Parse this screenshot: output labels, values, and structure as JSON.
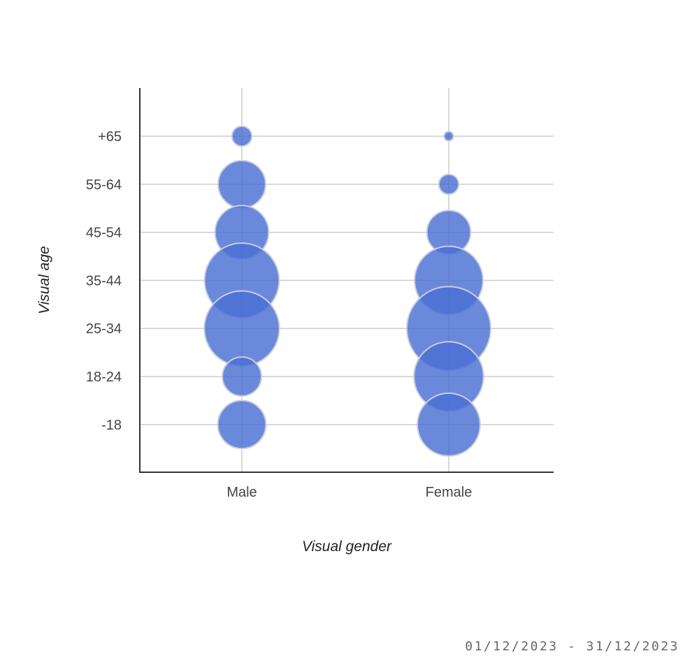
{
  "date_range": "01/12/2023 - 31/12/2023",
  "colors": {
    "bubble_fill": "#4a6fd3",
    "bubble_stroke": "#c9cede",
    "grid": "#cccccc",
    "axis": "#333333"
  },
  "chart_data": {
    "type": "scatter",
    "style": "bubble",
    "xlabel": "Visual gender",
    "ylabel": "Visual age",
    "x_categories": [
      "Male",
      "Female"
    ],
    "y_categories": [
      "-18",
      "18-24",
      "25-34",
      "35-44",
      "45-54",
      "55-64",
      "+65"
    ],
    "grid": true,
    "legend": "none",
    "points": [
      {
        "x": "Male",
        "y": "+65",
        "size": 0.7
      },
      {
        "x": "Male",
        "y": "55-64",
        "size": 4.0
      },
      {
        "x": "Male",
        "y": "45-54",
        "size": 5.1
      },
      {
        "x": "Male",
        "y": "35-44",
        "size": 9.9
      },
      {
        "x": "Male",
        "y": "25-34",
        "size": 10.0
      },
      {
        "x": "Male",
        "y": "18-24",
        "size": 2.7
      },
      {
        "x": "Male",
        "y": "-18",
        "size": 4.1
      },
      {
        "x": "Female",
        "y": "+65",
        "size": 0.15
      },
      {
        "x": "Female",
        "y": "55-64",
        "size": 0.7
      },
      {
        "x": "Female",
        "y": "45-54",
        "size": 3.4
      },
      {
        "x": "Female",
        "y": "35-44",
        "size": 8.3
      },
      {
        "x": "Female",
        "y": "25-34",
        "size": 12.5
      },
      {
        "x": "Female",
        "y": "18-24",
        "size": 8.6
      },
      {
        "x": "Female",
        "y": "-18",
        "size": 7.0
      }
    ]
  }
}
